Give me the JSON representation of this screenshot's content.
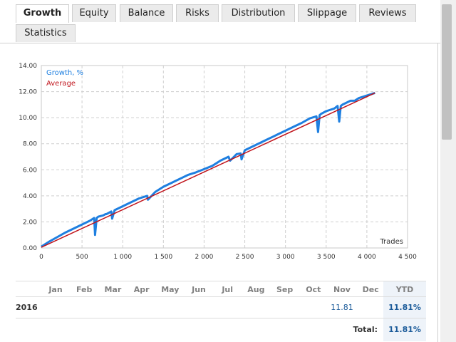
{
  "tabs": [
    {
      "label": "Growth",
      "active": true
    },
    {
      "label": "Equity",
      "active": false
    },
    {
      "label": "Balance",
      "active": false
    },
    {
      "label": "Risks",
      "active": false
    },
    {
      "label": "Distribution",
      "active": false
    },
    {
      "label": "Slippage",
      "active": false
    },
    {
      "label": "Reviews",
      "active": false
    },
    {
      "label": "Statistics",
      "active": false
    }
  ],
  "chart_data": {
    "type": "line",
    "title": "",
    "xlabel": "Trades",
    "ylabel": "",
    "xlim": [
      0,
      4500
    ],
    "ylim": [
      0,
      14
    ],
    "grid": true,
    "legend_position": "top-left",
    "x_ticks": [
      "0",
      "500",
      "1 000",
      "1 500",
      "2 000",
      "2 500",
      "3 000",
      "3 500",
      "4 000",
      "4 500"
    ],
    "y_ticks": [
      "0.00",
      "2.00",
      "4.00",
      "6.00",
      "8.00",
      "10.00",
      "12.00",
      "14.00"
    ],
    "series": [
      {
        "name": "Growth, %",
        "color": "#1e7fe0",
        "x": [
          0,
          100,
          200,
          300,
          400,
          500,
          600,
          650,
          660,
          680,
          700,
          760,
          790,
          800,
          860,
          870,
          900,
          1000,
          1100,
          1200,
          1300,
          1310,
          1400,
          1500,
          1600,
          1700,
          1800,
          1900,
          2000,
          2100,
          2200,
          2300,
          2320,
          2400,
          2450,
          2460,
          2500,
          2600,
          2700,
          2800,
          2900,
          3000,
          3100,
          3200,
          3300,
          3380,
          3400,
          3420,
          3440,
          3500,
          3600,
          3640,
          3660,
          3680,
          3700,
          3800,
          3850,
          3900,
          4000,
          4100
        ],
        "y": [
          0.1,
          0.5,
          0.85,
          1.2,
          1.5,
          1.8,
          2.1,
          2.3,
          1.0,
          2.3,
          2.4,
          2.5,
          2.6,
          2.6,
          2.8,
          2.25,
          2.9,
          3.2,
          3.5,
          3.8,
          4.0,
          3.7,
          4.3,
          4.7,
          5.0,
          5.3,
          5.6,
          5.8,
          6.05,
          6.3,
          6.7,
          7.0,
          6.7,
          7.2,
          7.25,
          6.8,
          7.5,
          7.8,
          8.1,
          8.4,
          8.7,
          9.0,
          9.3,
          9.6,
          9.95,
          10.1,
          8.9,
          10.2,
          10.3,
          10.5,
          10.7,
          10.9,
          9.7,
          10.9,
          11.0,
          11.3,
          11.3,
          11.5,
          11.7,
          11.9
        ]
      },
      {
        "name": "Average",
        "color": "#c0141c",
        "x": [
          0,
          4100
        ],
        "y": [
          0.05,
          11.9
        ]
      }
    ]
  },
  "table": {
    "months": [
      "Jan",
      "Feb",
      "Mar",
      "Apr",
      "May",
      "Jun",
      "Jul",
      "Aug",
      "Sep",
      "Oct",
      "Nov",
      "Dec"
    ],
    "ytd_header": "YTD",
    "year": "2016",
    "values": [
      "",
      "",
      "",
      "",
      "",
      "",
      "",
      "",
      "",
      "",
      "11.81",
      ""
    ],
    "ytd_value": "11.81%",
    "total_label": "Total:",
    "total_value": "11.81%"
  }
}
